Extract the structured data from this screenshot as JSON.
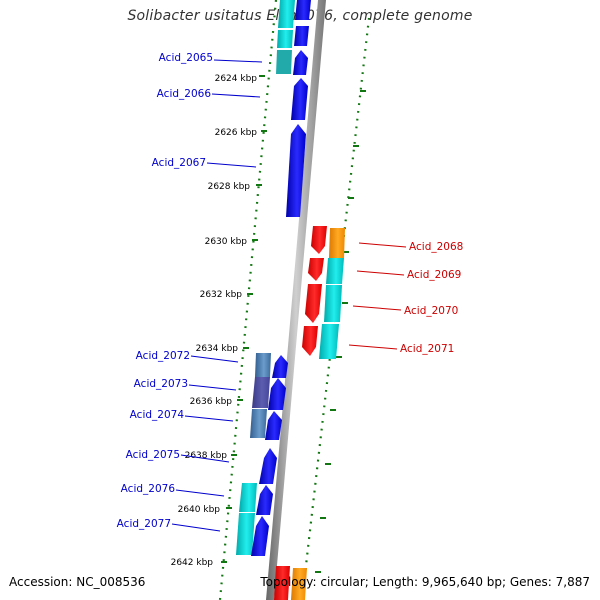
{
  "title": "Solibacter usitatus Ellin6076, complete genome",
  "accession": "Accession: NC_008536",
  "topology": "Topology: circular; Length: 9,965,640 bp; Genes: 7,887",
  "colors": {
    "forward_gene": "#0000ee",
    "reverse_gene": "#ee0000",
    "cds_cyan": "#00cccc",
    "cds_orange": "#ee8800",
    "cds_steel": "#4477aa",
    "backbone": "#888888",
    "tick_green": "#117711",
    "forward_label": "#0000cc",
    "reverse_label": "#cc0000"
  },
  "scale": {
    "unit": "kbp",
    "ticks": [
      "2624 kbp",
      "2626 kbp",
      "2628 kbp",
      "2630 kbp",
      "2632 kbp",
      "2634 kbp",
      "2636 kbp",
      "2638 kbp",
      "2640 kbp",
      "2642 kbp"
    ]
  },
  "forward_genes": [
    {
      "label": "Acid_2065"
    },
    {
      "label": "Acid_2066"
    },
    {
      "label": "Acid_2067"
    },
    {
      "label": "Acid_2072"
    },
    {
      "label": "Acid_2073"
    },
    {
      "label": "Acid_2074"
    },
    {
      "label": "Acid_2075"
    },
    {
      "label": "Acid_2076"
    },
    {
      "label": "Acid_2077"
    }
  ],
  "reverse_genes": [
    {
      "label": "Acid_2068"
    },
    {
      "label": "Acid_2069"
    },
    {
      "label": "Acid_2070"
    },
    {
      "label": "Acid_2071"
    }
  ]
}
